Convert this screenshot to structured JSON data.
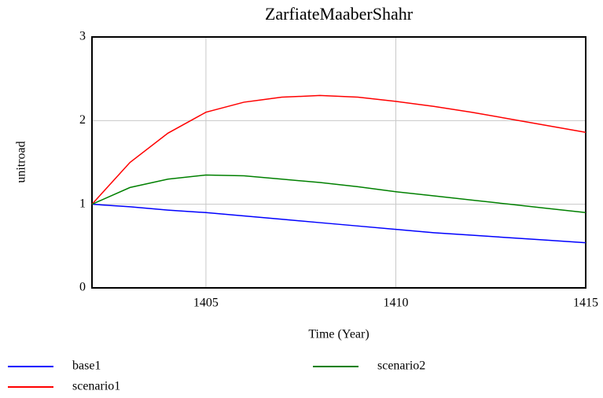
{
  "chart_data": {
    "type": "line",
    "title": "ZarfiateMaaberShahr",
    "x_label": "Time (Year)",
    "y_label": "unitroad",
    "x": [
      1402,
      1403,
      1404,
      1405,
      1406,
      1407,
      1408,
      1409,
      1410,
      1411,
      1412,
      1413,
      1414,
      1415
    ],
    "series": [
      {
        "name": "base1",
        "color": "#0000ff",
        "values": [
          1.0,
          0.97,
          0.93,
          0.9,
          0.86,
          0.82,
          0.78,
          0.74,
          0.7,
          0.66,
          0.63,
          0.6,
          0.57,
          0.54
        ]
      },
      {
        "name": "scenario1",
        "color": "#ff0000",
        "values": [
          1.0,
          1.5,
          1.85,
          2.1,
          2.22,
          2.28,
          2.3,
          2.28,
          2.23,
          2.17,
          2.1,
          2.02,
          1.94,
          1.86
        ]
      },
      {
        "name": "scenario2",
        "color": "#008000",
        "values": [
          1.0,
          1.2,
          1.3,
          1.35,
          1.34,
          1.3,
          1.26,
          1.21,
          1.15,
          1.1,
          1.05,
          1.0,
          0.95,
          0.9
        ]
      }
    ],
    "xlim": [
      1402,
      1415
    ],
    "xticks": [
      1405,
      1410,
      1415
    ],
    "ylim": [
      0,
      3
    ],
    "yticks": [
      0,
      1,
      2,
      3
    ],
    "grid": true
  }
}
